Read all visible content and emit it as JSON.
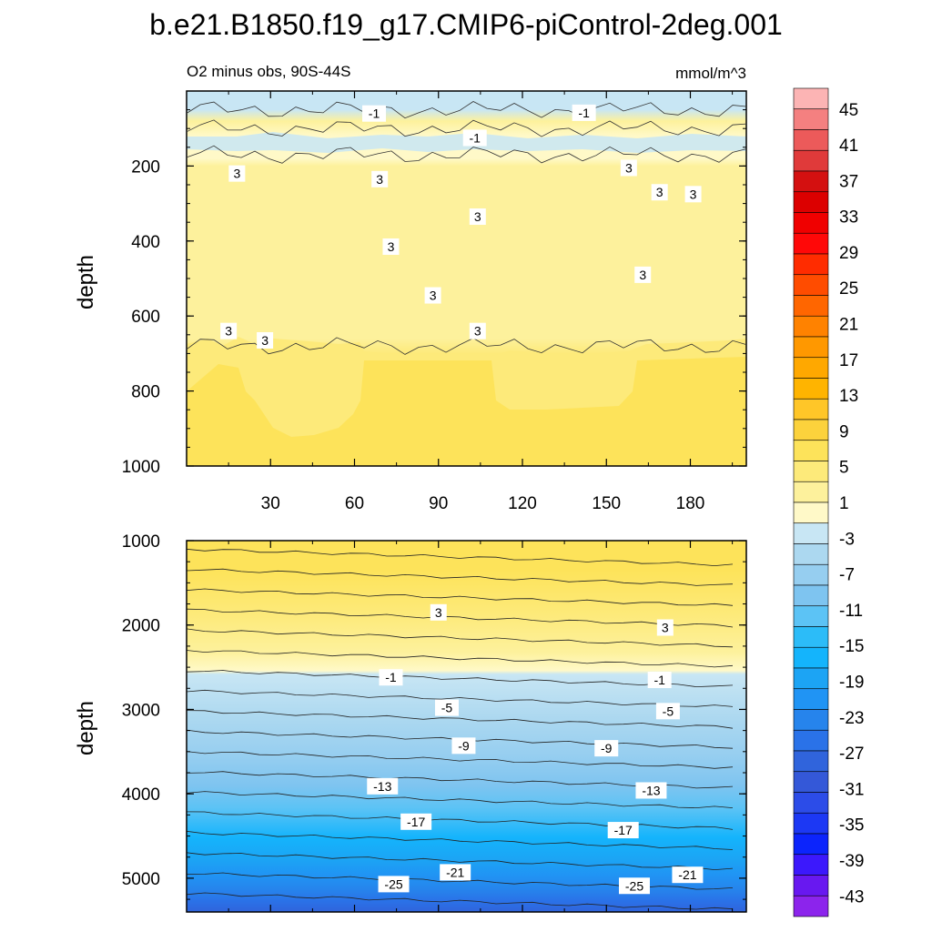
{
  "title": "b.e21.B1850.f19_g17.CMIP6-piControl-2deg.001",
  "chart_data": [
    {
      "type": "heatmap",
      "panel": "upper",
      "subtitle": "O2 minus obs, 90S-44S",
      "units": "mmol/m^3",
      "ylabel": "depth",
      "xlabel": "",
      "xlim": [
        0,
        200
      ],
      "ylim": [
        1000,
        0
      ],
      "y_reversed": true,
      "x_ticks": [
        30,
        60,
        90,
        120,
        150,
        180
      ],
      "y_ticks": [
        200,
        400,
        600,
        800,
        1000
      ],
      "bands": [
        {
          "depth_top": 0,
          "depth_bottom": 50,
          "value": -2
        },
        {
          "depth_top": 50,
          "depth_bottom": 100,
          "value": 1
        },
        {
          "depth_top": 100,
          "depth_bottom": 170,
          "value": 0
        },
        {
          "depth_top": 170,
          "depth_bottom": 680,
          "value": 2
        },
        {
          "depth_top": 680,
          "depth_bottom": 1000,
          "value": 4
        }
      ],
      "contour_labels": [
        {
          "x": 67,
          "depth": 60,
          "text": "-1"
        },
        {
          "x": 142,
          "depth": 58,
          "text": "-1"
        },
        {
          "x": 103,
          "depth": 125,
          "text": "-1"
        },
        {
          "x": 18,
          "depth": 220,
          "text": "3"
        },
        {
          "x": 69,
          "depth": 235,
          "text": "3"
        },
        {
          "x": 158,
          "depth": 205,
          "text": "3"
        },
        {
          "x": 169,
          "depth": 270,
          "text": "3"
        },
        {
          "x": 181,
          "depth": 275,
          "text": "3"
        },
        {
          "x": 104,
          "depth": 335,
          "text": "3"
        },
        {
          "x": 73,
          "depth": 415,
          "text": "3"
        },
        {
          "x": 163,
          "depth": 490,
          "text": "3"
        },
        {
          "x": 88,
          "depth": 545,
          "text": "3"
        },
        {
          "x": 15,
          "depth": 640,
          "text": "3"
        },
        {
          "x": 28,
          "depth": 665,
          "text": "3"
        },
        {
          "x": 104,
          "depth": 640,
          "text": "3"
        }
      ]
    },
    {
      "type": "heatmap",
      "panel": "lower",
      "subtitle": "",
      "units": "",
      "ylabel": "depth",
      "xlabel": "",
      "xlim": [
        0,
        200
      ],
      "ylim": [
        5400,
        1000
      ],
      "y_reversed": true,
      "y_ticks": [
        1000,
        2000,
        3000,
        4000,
        5000
      ],
      "contour_labels": [
        {
          "x": 90,
          "depth": 1850,
          "text": "3"
        },
        {
          "x": 171,
          "depth": 2030,
          "text": "3"
        },
        {
          "x": 73,
          "depth": 2620,
          "text": "-1"
        },
        {
          "x": 169,
          "depth": 2650,
          "text": "-1"
        },
        {
          "x": 93,
          "depth": 2980,
          "text": "-5"
        },
        {
          "x": 172,
          "depth": 3020,
          "text": "-5"
        },
        {
          "x": 99,
          "depth": 3430,
          "text": "-9"
        },
        {
          "x": 150,
          "depth": 3460,
          "text": "-9"
        },
        {
          "x": 70,
          "depth": 3910,
          "text": "-13"
        },
        {
          "x": 166,
          "depth": 3960,
          "text": "-13"
        },
        {
          "x": 82,
          "depth": 4330,
          "text": "-17"
        },
        {
          "x": 156,
          "depth": 4430,
          "text": "-17"
        },
        {
          "x": 96,
          "depth": 4930,
          "text": "-21"
        },
        {
          "x": 179,
          "depth": 4960,
          "text": "-21"
        },
        {
          "x": 74,
          "depth": 5070,
          "text": "-25"
        },
        {
          "x": 160,
          "depth": 5090,
          "text": "-25"
        }
      ]
    }
  ],
  "colorbar": {
    "labels": [
      "45",
      "41",
      "37",
      "33",
      "29",
      "25",
      "21",
      "17",
      "13",
      "9",
      "5",
      "1",
      "-3",
      "-7",
      "-11",
      "-15",
      "-19",
      "-23",
      "-27",
      "-31",
      "-35",
      "-39",
      "-43"
    ],
    "colors": [
      "#fcb4b4",
      "#f48080",
      "#ec5a5a",
      "#e03a3a",
      "#d41010",
      "#dc0000",
      "#f00000",
      "#ff0808",
      "#ff2c00",
      "#ff4c00",
      "#ff6600",
      "#ff8200",
      "#ff9800",
      "#ffa800",
      "#ffb400",
      "#ffc628",
      "#fcd23c",
      "#fde35a",
      "#fdea7a",
      "#fdf19c",
      "#fff9c8",
      "#c8e6f4",
      "#acd8f0",
      "#96cef0",
      "#7ec4f0",
      "#5cc3f5",
      "#2cbcf8",
      "#14b4fc",
      "#1ca4f4",
      "#2094f4",
      "#2684ec",
      "#2a72e8",
      "#3064dc",
      "#3458d8",
      "#2c4ce8",
      "#1c38f4",
      "#0c24fc",
      "#3c18fc",
      "#6818f0",
      "#8c24ec"
    ]
  }
}
